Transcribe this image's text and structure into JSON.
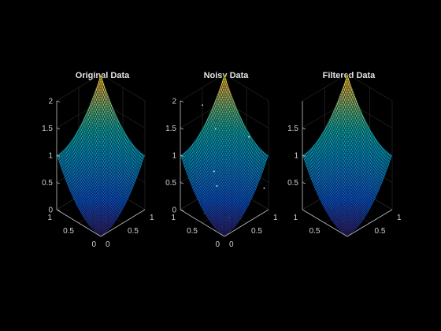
{
  "chart_data": [
    {
      "type": "surface",
      "title": "Original Data",
      "zlim": [
        0,
        2
      ],
      "z_ticks": [
        "0",
        "0.5",
        "1",
        "1.5",
        "2"
      ],
      "x_ticks": [
        "0",
        "0.5",
        "1"
      ],
      "y_ticks": [
        "0",
        "0.5",
        "1"
      ],
      "function": "x^2 + y^2",
      "grid_resolution": 50,
      "noise": false,
      "colormap": "parula",
      "grid": true
    },
    {
      "type": "surface",
      "title": "Noisy Data",
      "zlim": [
        0,
        2
      ],
      "z_ticks": [
        "0",
        "0.5",
        "1",
        "1.5",
        "2"
      ],
      "x_ticks": [
        "0",
        "0.5",
        "1"
      ],
      "y_ticks": [
        "0",
        "0.5",
        "1"
      ],
      "function": "x^2 + y^2 + salt-and-pepper noise",
      "grid_resolution": 50,
      "noise": true,
      "colormap": "parula",
      "grid": true
    },
    {
      "type": "surface",
      "title": "Filtered Data",
      "zlim": [
        0,
        2
      ],
      "z_ticks": [
        "0.5",
        "1",
        "1.5"
      ],
      "x_ticks": [
        "0.5",
        "1"
      ],
      "y_ticks": [
        "0.5",
        "1"
      ],
      "function": "median-filtered x^2 + y^2",
      "grid_resolution": 50,
      "noise": false,
      "colormap": "parula",
      "grid": true
    }
  ],
  "colors": {
    "background": "#000000",
    "axis": "#bdbdbd",
    "text": "#e6e6e6"
  }
}
